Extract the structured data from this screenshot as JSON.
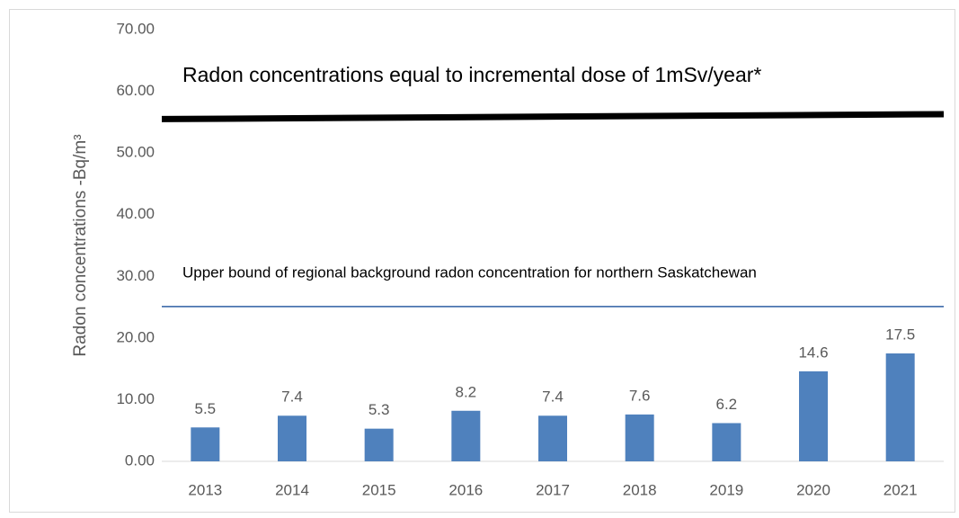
{
  "chart_data": {
    "type": "bar",
    "y_axis_label": "Radon concentrations -Bq/m³",
    "categories": [
      "2013",
      "2014",
      "2015",
      "2016",
      "2017",
      "2018",
      "2019",
      "2020",
      "2021"
    ],
    "values": [
      5.5,
      7.4,
      5.3,
      8.2,
      7.4,
      7.6,
      6.2,
      14.6,
      17.5
    ],
    "color": "#4f81bd",
    "ylim": [
      0,
      70
    ],
    "yticks": [
      {
        "value": 0,
        "label": "0.00"
      },
      {
        "value": 10,
        "label": "10.00"
      },
      {
        "value": 20,
        "label": "20.00"
      },
      {
        "value": 30,
        "label": "30.00"
      },
      {
        "value": 40,
        "label": "40.00"
      },
      {
        "value": 50,
        "label": "50.00"
      },
      {
        "value": 60,
        "label": "60.00"
      },
      {
        "value": 70,
        "label": "70.00"
      }
    ],
    "reference_lines": [
      {
        "label": "Radon concentrations equal to incremental dose of 1mSv/year*",
        "from": 55.5,
        "to": 56.3,
        "color": "#000000"
      },
      {
        "label": "Upper bound of regional background radon concentration for northern Saskatchewan",
        "from": 25.1,
        "to": 25.1,
        "color": "#2e5fa3"
      }
    ]
  }
}
